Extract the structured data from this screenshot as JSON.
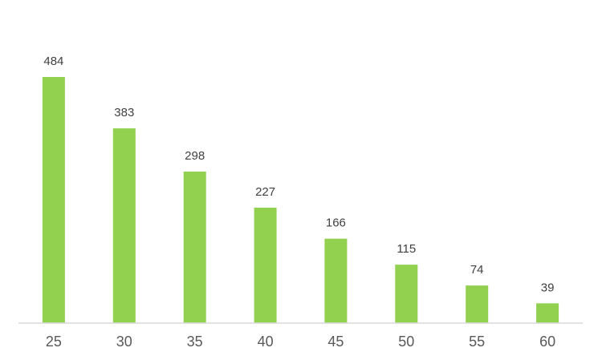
{
  "chart_data": {
    "type": "bar",
    "categories": [
      "25",
      "30",
      "35",
      "40",
      "45",
      "50",
      "55",
      "60"
    ],
    "values": [
      484,
      383,
      298,
      227,
      166,
      115,
      74,
      39
    ],
    "title": "",
    "xlabel": "",
    "ylabel": "",
    "ylim": [
      0,
      484
    ],
    "grid": false,
    "legend": "none",
    "colors": {
      "bar": "#92d050",
      "value_label": "#404040",
      "tick_label": "#595959",
      "axis": "#d9d9d9"
    }
  }
}
